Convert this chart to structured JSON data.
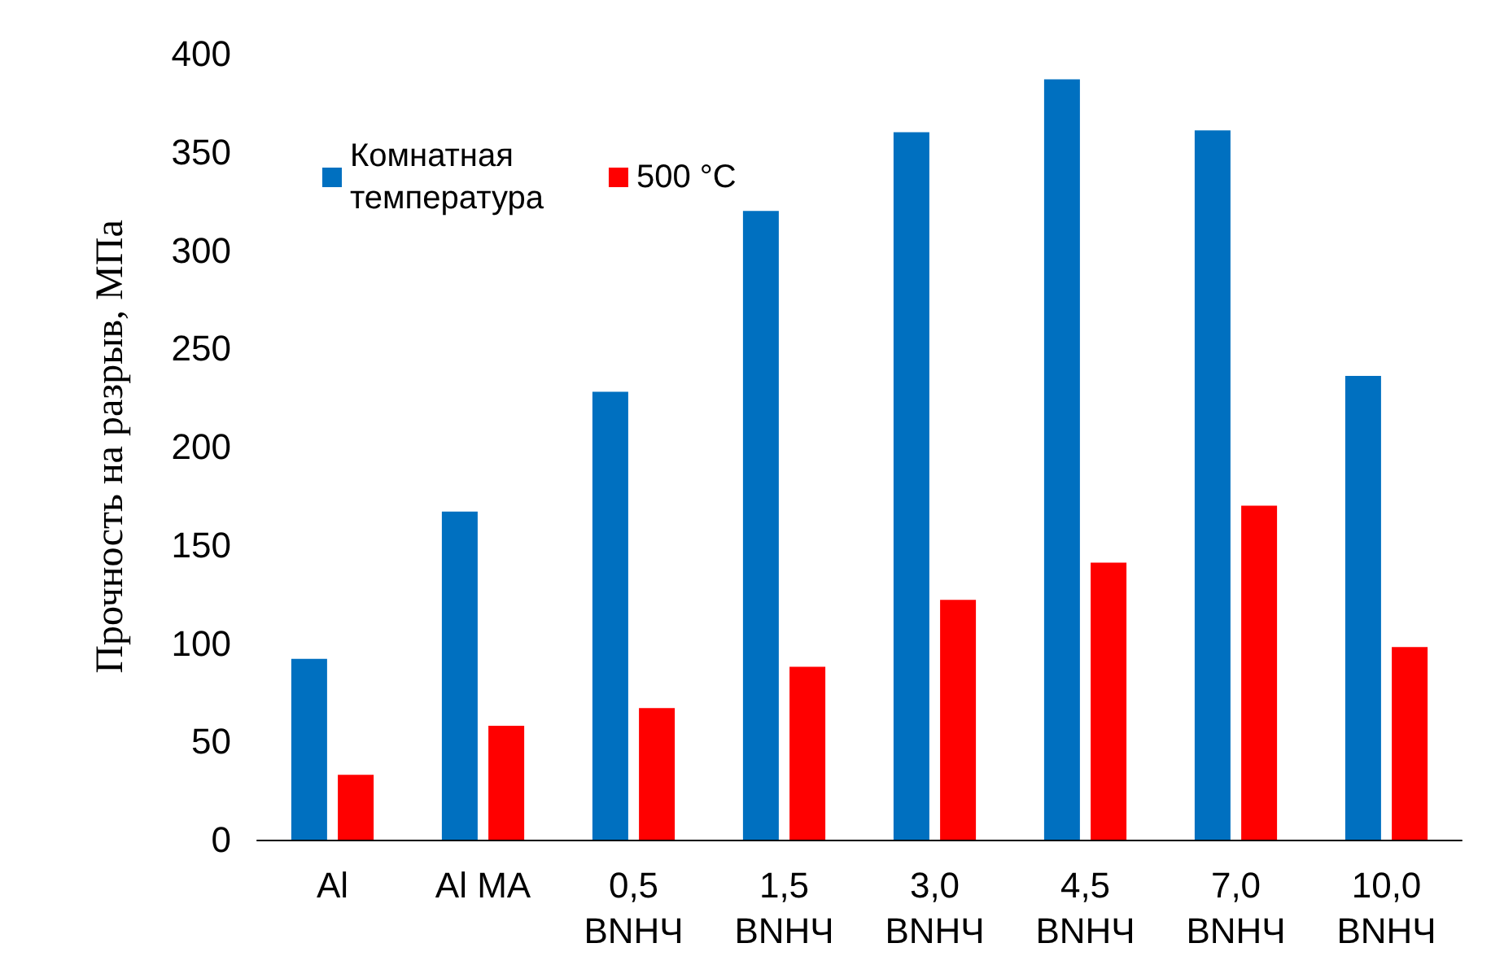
{
  "chart_data": {
    "type": "bar",
    "ylabel": "Прочность на разрыв, МПа",
    "categories": [
      "Al",
      "Al MA",
      "0,5\nBNHЧ",
      "1,5\nBNHЧ",
      "3,0\nBNHЧ",
      "4,5\nBNHЧ",
      "7,0\nBNHЧ",
      "10,0\nBNHЧ"
    ],
    "series": [
      {
        "name": "Комнатная\nтемпература",
        "color": "#0070c0",
        "values": [
          92,
          167,
          228,
          320,
          360,
          387,
          361,
          236
        ]
      },
      {
        "name": "500 °C",
        "color": "#ff0000",
        "values": [
          33,
          58,
          67,
          88,
          122,
          141,
          170,
          98
        ]
      }
    ],
    "ylim": [
      0,
      400
    ],
    "yticks": [
      0,
      50,
      100,
      150,
      200,
      250,
      300,
      350,
      400
    ],
    "grid": false,
    "legend": "top left"
  }
}
